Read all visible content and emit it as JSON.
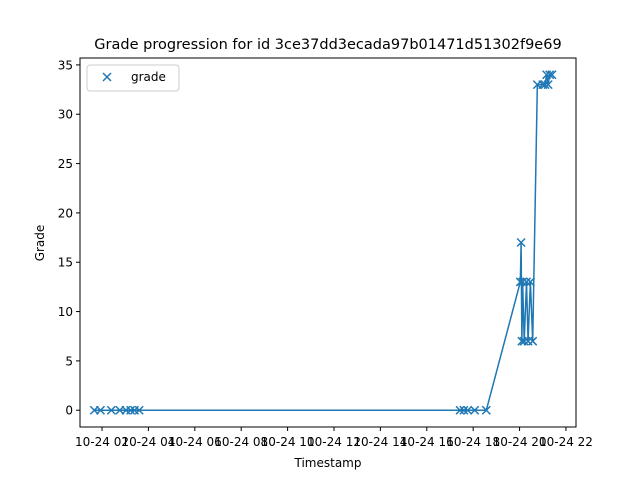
{
  "chart_data": {
    "type": "line",
    "title": "Grade progression for id 3ce37dd3ecada97b01471d51302f9e69",
    "xlabel": "Timestamp",
    "ylabel": "Grade",
    "xlim": [
      "10-24 01:03",
      "10-24 22:26"
    ],
    "ylim": [
      -1.7,
      35.7
    ],
    "x_ticks": [
      {
        "value": "10-24 02:00",
        "label": "10-24 02"
      },
      {
        "value": "10-24 04:00",
        "label": "10-24 04"
      },
      {
        "value": "10-24 06:00",
        "label": "10-24 06"
      },
      {
        "value": "10-24 08:00",
        "label": "10-24 08"
      },
      {
        "value": "10-24 10:00",
        "label": "10-24 10"
      },
      {
        "value": "10-24 12:00",
        "label": "10-24 12"
      },
      {
        "value": "10-24 14:00",
        "label": "10-24 14"
      },
      {
        "value": "10-24 16:00",
        "label": "10-24 16"
      },
      {
        "value": "10-24 18:00",
        "label": "10-24 18"
      },
      {
        "value": "10-24 20:00",
        "label": "10-24 20"
      },
      {
        "value": "10-24 22:00",
        "label": "10-24 22"
      }
    ],
    "y_ticks": [
      0,
      5,
      10,
      15,
      20,
      25,
      30,
      35
    ],
    "series": [
      {
        "name": "grade",
        "color": "#1f77b4",
        "marker": "x",
        "points": [
          {
            "x": "10-24 01:40",
            "y": 0
          },
          {
            "x": "10-24 01:56",
            "y": 0
          },
          {
            "x": "10-24 02:24",
            "y": 0
          },
          {
            "x": "10-24 02:46",
            "y": 0
          },
          {
            "x": "10-24 03:02",
            "y": 0
          },
          {
            "x": "10-24 03:14",
            "y": 0
          },
          {
            "x": "10-24 03:24",
            "y": 0
          },
          {
            "x": "10-24 03:36",
            "y": 0
          },
          {
            "x": "10-24 17:26",
            "y": 0
          },
          {
            "x": "10-24 17:36",
            "y": 0
          },
          {
            "x": "10-24 17:46",
            "y": 0
          },
          {
            "x": "10-24 18:04",
            "y": 0
          },
          {
            "x": "10-24 18:34",
            "y": 0
          },
          {
            "x": "10-24 20:02",
            "y": 13
          },
          {
            "x": "10-24 20:04",
            "y": 17
          },
          {
            "x": "10-24 20:06",
            "y": 7
          },
          {
            "x": "10-24 20:08",
            "y": 13
          },
          {
            "x": "10-24 20:12",
            "y": 7
          },
          {
            "x": "10-24 20:18",
            "y": 13
          },
          {
            "x": "10-24 20:22",
            "y": 7
          },
          {
            "x": "10-24 20:28",
            "y": 13
          },
          {
            "x": "10-24 20:34",
            "y": 7
          },
          {
            "x": "10-24 20:46",
            "y": 33
          },
          {
            "x": "10-24 21:00",
            "y": 33
          },
          {
            "x": "10-24 21:06",
            "y": 33
          },
          {
            "x": "10-24 21:10",
            "y": 34
          },
          {
            "x": "10-24 21:14",
            "y": 33
          },
          {
            "x": "10-24 21:18",
            "y": 34
          },
          {
            "x": "10-24 21:24",
            "y": 34
          }
        ]
      }
    ],
    "legend": {
      "position": "upper-left",
      "entries": [
        "grade"
      ]
    },
    "grid": false
  }
}
